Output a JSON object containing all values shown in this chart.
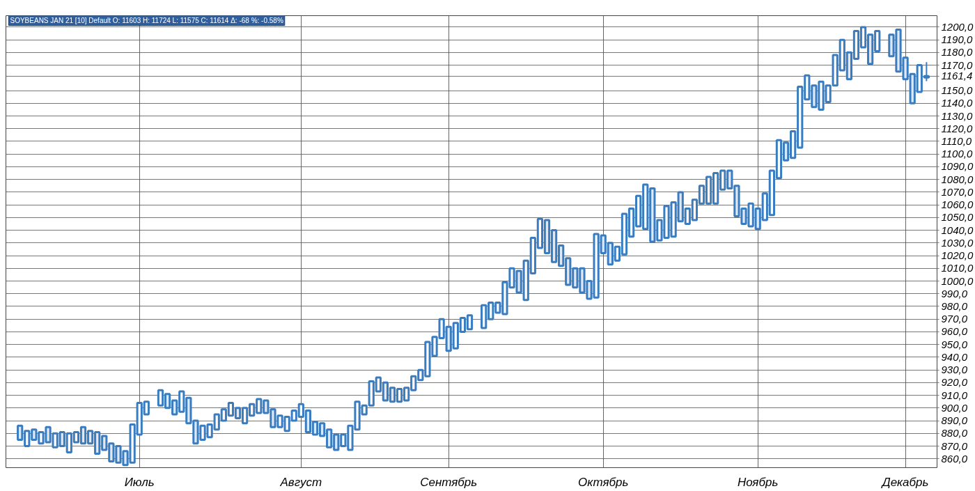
{
  "chart_data": {
    "type": "candlestick",
    "title": "SOYBEANS JAN 21 [10] Default O: 11603 H: 11724 L: 11575 C: 11614 Δ: -68 %: -0.58%",
    "color": "#3a7cc0",
    "grid": true,
    "categories": [
      null,
      null,
      null,
      null,
      null,
      null,
      null,
      null,
      null,
      null,
      null,
      null,
      null,
      null,
      null,
      null,
      null,
      "Июль",
      null,
      null,
      null,
      null,
      null,
      null,
      null,
      null,
      null,
      null,
      null,
      null,
      null,
      null,
      null,
      null,
      null,
      null,
      null,
      null,
      null,
      null,
      "Август",
      null,
      null,
      null,
      null,
      null,
      null,
      null,
      null,
      null,
      null,
      null,
      null,
      null,
      null,
      null,
      null,
      null,
      null,
      null,
      null,
      "Сентябрь",
      null,
      null,
      null,
      null,
      null,
      null,
      null,
      null,
      null,
      null,
      null,
      null,
      null,
      null,
      null,
      null,
      null,
      null,
      null,
      null,
      null,
      "Октябрь",
      null,
      null,
      null,
      null,
      null,
      null,
      null,
      null,
      null,
      null,
      null,
      null,
      null,
      null,
      null,
      null,
      null,
      null,
      null,
      null,
      null,
      "Ноябрь",
      null,
      null,
      null,
      null,
      null,
      null,
      null,
      null,
      null,
      null,
      null,
      null,
      null,
      null,
      null,
      null,
      null,
      null,
      null,
      null,
      "Декабрь",
      null,
      null,
      null
    ],
    "ohlc": [
      [
        886,
        886,
        875,
        875
      ],
      [
        870,
        882,
        870,
        882
      ],
      [
        883,
        883,
        875,
        875
      ],
      [
        872,
        881,
        872,
        881
      ],
      [
        885,
        885,
        873,
        873
      ],
      [
        869,
        880,
        869,
        880
      ],
      [
        881,
        881,
        870,
        870
      ],
      [
        865,
        880,
        865,
        880
      ],
      [
        873,
        881,
        873,
        881
      ],
      [
        885,
        885,
        872,
        872
      ],
      [
        882,
        882,
        872,
        872
      ],
      [
        881,
        881,
        864,
        864
      ],
      [
        878,
        878,
        867,
        867
      ],
      [
        872,
        872,
        858,
        858
      ],
      [
        870,
        870,
        857,
        857
      ],
      [
        866,
        866,
        855,
        855
      ],
      [
        857,
        887,
        857,
        887
      ],
      [
        879,
        904,
        879,
        904
      ],
      [
        895,
        905,
        895,
        905
      ],
      null,
      [
        902,
        914,
        902,
        914
      ],
      [
        911,
        911,
        900,
        900
      ],
      [
        906,
        906,
        895,
        895
      ],
      [
        897,
        913,
        897,
        913
      ],
      [
        908,
        908,
        888,
        888
      ],
      [
        890,
        890,
        872,
        872
      ],
      [
        875,
        886,
        875,
        886
      ],
      [
        877,
        887,
        877,
        887
      ],
      [
        883,
        895,
        883,
        895
      ],
      [
        890,
        899,
        890,
        899
      ],
      [
        894,
        904,
        894,
        904
      ],
      [
        900,
        900,
        892,
        892
      ],
      [
        888,
        900,
        888,
        900
      ],
      [
        894,
        903,
        894,
        903
      ],
      [
        896,
        907,
        896,
        907
      ],
      [
        906,
        906,
        896,
        896
      ],
      [
        899,
        899,
        885,
        885
      ],
      [
        885,
        894,
        885,
        894
      ],
      [
        882,
        893,
        882,
        893
      ],
      [
        890,
        898,
        890,
        898
      ],
      [
        893,
        903,
        893,
        903
      ],
      [
        898,
        898,
        881,
        881
      ],
      [
        889,
        889,
        879,
        879
      ],
      [
        888,
        888,
        878,
        878
      ],
      [
        883,
        883,
        869,
        869
      ],
      [
        879,
        879,
        867,
        867
      ],
      [
        870,
        879,
        870,
        879
      ],
      [
        867,
        886,
        867,
        886
      ],
      [
        883,
        905,
        883,
        905
      ],
      [
        895,
        902,
        895,
        902
      ],
      [
        902,
        921,
        902,
        921
      ],
      [
        913,
        924,
        913,
        924
      ],
      [
        920,
        920,
        906,
        906
      ],
      [
        916,
        916,
        905,
        905
      ],
      [
        905,
        915,
        905,
        915
      ],
      [
        906,
        916,
        906,
        916
      ],
      [
        914,
        925,
        914,
        925
      ],
      [
        922,
        930,
        922,
        930
      ],
      [
        925,
        952,
        925,
        952
      ],
      [
        941,
        956,
        941,
        956
      ],
      [
        955,
        970,
        955,
        970
      ],
      [
        964,
        964,
        945,
        945
      ],
      [
        947,
        967,
        947,
        967
      ],
      [
        960,
        971,
        960,
        971
      ],
      [
        962,
        973,
        962,
        973
      ],
      null,
      [
        963,
        981,
        963,
        981
      ],
      [
        970,
        983,
        970,
        983
      ],
      [
        975,
        983,
        975,
        983
      ],
      [
        974,
        999,
        974,
        999
      ],
      [
        995,
        1010,
        995,
        1010
      ],
      [
        1008,
        1008,
        991,
        991
      ],
      [
        985,
        1016,
        985,
        1016
      ],
      [
        1006,
        1034,
        1006,
        1034
      ],
      [
        1026,
        1049,
        1026,
        1049
      ],
      [
        1048,
        1048,
        1022,
        1022
      ],
      [
        1040,
        1040,
        1015,
        1015
      ],
      [
        1028,
        1028,
        1012,
        1012
      ],
      [
        1018,
        1018,
        997,
        997
      ],
      [
        1010,
        1010,
        995,
        995
      ],
      [
        1010,
        1010,
        991,
        991
      ],
      [
        1000,
        1000,
        986,
        986
      ],
      [
        987,
        1037,
        987,
        1037
      ],
      [
        1036,
        1036,
        1022,
        1022
      ],
      [
        1030,
        1030,
        1013,
        1013
      ],
      [
        1016,
        1027,
        1016,
        1027
      ],
      [
        1021,
        1053,
        1021,
        1053
      ],
      [
        1035,
        1057,
        1035,
        1057
      ],
      [
        1043,
        1067,
        1043,
        1067
      ],
      [
        1041,
        1076,
        1041,
        1076
      ],
      [
        1073,
        1073,
        1031,
        1031
      ],
      [
        1032,
        1048,
        1032,
        1048
      ],
      [
        1034,
        1059,
        1034,
        1059
      ],
      [
        1035,
        1062,
        1035,
        1062
      ],
      [
        1070,
        1070,
        1047,
        1047
      ],
      [
        1045,
        1057,
        1045,
        1057
      ],
      [
        1048,
        1064,
        1048,
        1064
      ],
      [
        1061,
        1075,
        1061,
        1075
      ],
      [
        1061,
        1082,
        1061,
        1082
      ],
      [
        1061,
        1085,
        1061,
        1085
      ],
      [
        1072,
        1087,
        1072,
        1087
      ],
      [
        1087,
        1087,
        1073,
        1073
      ],
      [
        1075,
        1075,
        1051,
        1051
      ],
      [
        1057,
        1057,
        1045,
        1045
      ],
      [
        1043,
        1061,
        1043,
        1061
      ],
      [
        1057,
        1057,
        1041,
        1041
      ],
      [
        1048,
        1069,
        1048,
        1069
      ],
      [
        1052,
        1087,
        1052,
        1087
      ],
      [
        1081,
        1111,
        1081,
        1111
      ],
      [
        1109,
        1109,
        1095,
        1095
      ],
      [
        1097,
        1118,
        1097,
        1118
      ],
      [
        1105,
        1153,
        1105,
        1153
      ],
      [
        1143,
        1162,
        1143,
        1162
      ],
      [
        1154,
        1154,
        1137,
        1137
      ],
      [
        1135,
        1157,
        1135,
        1157
      ],
      [
        1141,
        1154,
        1141,
        1154
      ],
      [
        1154,
        1178,
        1154,
        1178
      ],
      [
        1166,
        1190,
        1166,
        1190
      ],
      [
        1180,
        1180,
        1159,
        1159
      ],
      [
        1175,
        1197,
        1175,
        1197
      ],
      [
        1184,
        1200,
        1184,
        1200
      ],
      [
        1194,
        1194,
        1171,
        1171
      ],
      [
        1181,
        1197,
        1181,
        1197
      ],
      null,
      [
        1194,
        1194,
        1177,
        1177
      ],
      [
        1198,
        1198,
        1165,
        1165
      ],
      [
        1176,
        1176,
        1159,
        1159
      ],
      [
        1163,
        1163,
        1140,
        1140
      ],
      [
        1149,
        1170,
        1149,
        1170
      ],
      [
        1160.3,
        1172.4,
        1157.5,
        1161.4
      ]
    ],
    "ylim": [
      853,
      1209
    ],
    "yticks": [
      {
        "value": 860,
        "label": "860,0"
      },
      {
        "value": 870,
        "label": "870,0"
      },
      {
        "value": 880,
        "label": "880,0"
      },
      {
        "value": 890,
        "label": "890,0"
      },
      {
        "value": 900,
        "label": "900,0"
      },
      {
        "value": 910,
        "label": "910,0"
      },
      {
        "value": 920,
        "label": "920,0"
      },
      {
        "value": 930,
        "label": "930,0"
      },
      {
        "value": 940,
        "label": "940,0"
      },
      {
        "value": 950,
        "label": "950,0"
      },
      {
        "value": 960,
        "label": "960,0"
      },
      {
        "value": 970,
        "label": "970,0"
      },
      {
        "value": 980,
        "label": "980,0"
      },
      {
        "value": 990,
        "label": "990,0"
      },
      {
        "value": 1000,
        "label": "1000,0"
      },
      {
        "value": 1010,
        "label": "1010,0"
      },
      {
        "value": 1020,
        "label": "1020,0"
      },
      {
        "value": 1030,
        "label": "1030,0"
      },
      {
        "value": 1040,
        "label": "1040,0"
      },
      {
        "value": 1050,
        "label": "1050,0"
      },
      {
        "value": 1060,
        "label": "1060,0"
      },
      {
        "value": 1070,
        "label": "1070,0"
      },
      {
        "value": 1080,
        "label": "1080,0"
      },
      {
        "value": 1090,
        "label": "1090,0"
      },
      {
        "value": 1100,
        "label": "1100,0"
      },
      {
        "value": 1110,
        "label": "1110,0"
      },
      {
        "value": 1120,
        "label": "1120,0"
      },
      {
        "value": 1130,
        "label": "1130,0"
      },
      {
        "value": 1140,
        "label": "1140,0"
      },
      {
        "value": 1150,
        "label": "1150,0"
      },
      {
        "value": 1161.4,
        "label": "1161,4"
      },
      {
        "value": 1170,
        "label": "1170,0"
      },
      {
        "value": 1180,
        "label": "1180,0"
      },
      {
        "value": 1190,
        "label": "1190,0"
      },
      {
        "value": 1200,
        "label": "1200,0"
      }
    ]
  }
}
